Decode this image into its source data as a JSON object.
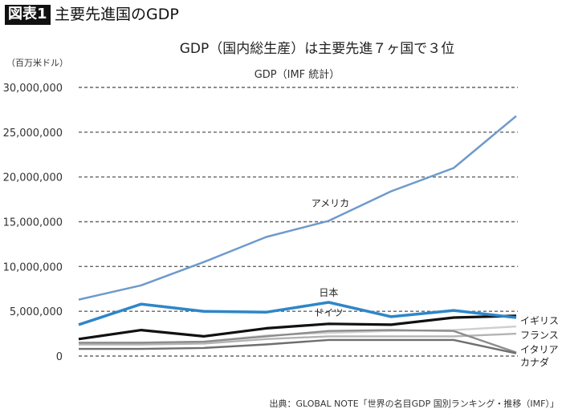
{
  "figure": {
    "badge": "図表1",
    "title": "主要先進国のGDP"
  },
  "source": "出典：GLOBAL NOTE「世界の名目GDP 国別ランキング・推移（IMF）」",
  "chart_data": {
    "type": "line",
    "title": "GDP（国内総生産）は主要先進７ヶ国で３位",
    "subtitle": "GDP（IMF 統計）",
    "ylabel": "（百万米ドル）",
    "xlabel": "",
    "ylim": [
      0,
      30000000
    ],
    "yticks": [
      0,
      5000000,
      10000000,
      15000000,
      20000000,
      25000000,
      30000000
    ],
    "ytick_labels": [
      "0",
      "5,000,000",
      "10,000,000",
      "15,000,000",
      "20,000,000",
      "25,000,000",
      "30,000,000"
    ],
    "grid": "horizontal-dashed",
    "x_count": 8,
    "x_tick_labels_visible": false,
    "series": [
      {
        "name": "アメリカ",
        "color": "#6e9acb",
        "values": [
          6300000,
          7900000,
          10500000,
          13300000,
          15100000,
          18400000,
          21000000,
          26800000
        ]
      },
      {
        "name": "日本",
        "color": "#2e86c8",
        "values": [
          3500000,
          5800000,
          5000000,
          4900000,
          6000000,
          4400000,
          5100000,
          4300000
        ]
      },
      {
        "name": "ドイツ",
        "color": "#111111",
        "values": [
          1900000,
          2900000,
          2200000,
          3100000,
          3600000,
          3500000,
          4300000,
          4500000
        ]
      },
      {
        "name": "イギリス",
        "color": "#cfcfcf",
        "values": [
          1400000,
          1500000,
          1600000,
          2300000,
          2600000,
          2800000,
          2900000,
          3300000
        ]
      },
      {
        "name": "フランス",
        "color": "#b3b3b3",
        "values": [
          1300000,
          1300000,
          1400000,
          1900000,
          2200000,
          2200000,
          2200000,
          2500000
        ]
      },
      {
        "name": "イタリア",
        "color": "#8c8c8c",
        "values": [
          1500000,
          1500000,
          1600000,
          2200000,
          2800000,
          2900000,
          2800000,
          400000
        ]
      },
      {
        "name": "カナダ",
        "color": "#6f6f6f",
        "values": [
          800000,
          800000,
          900000,
          1300000,
          1800000,
          1800000,
          1800000,
          300000
        ]
      }
    ]
  }
}
